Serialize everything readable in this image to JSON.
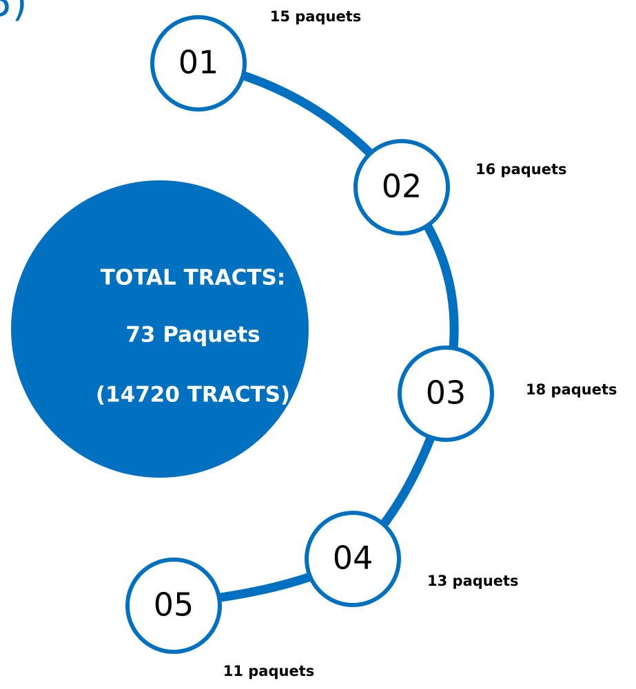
{
  "corner_text": "5)",
  "center": {
    "lines": [
      "TOTAL TRACTS:",
      "73 Paquets",
      "(14720 TRACTS)"
    ]
  },
  "nodes": [
    {
      "label": "01",
      "count": "15 paquets"
    },
    {
      "label": "02",
      "count": "16 paquets"
    },
    {
      "label": "03",
      "count": "18 paquets"
    },
    {
      "label": "04",
      "count": "13 paquets"
    },
    {
      "label": "05",
      "count": "11 paquets"
    }
  ]
}
